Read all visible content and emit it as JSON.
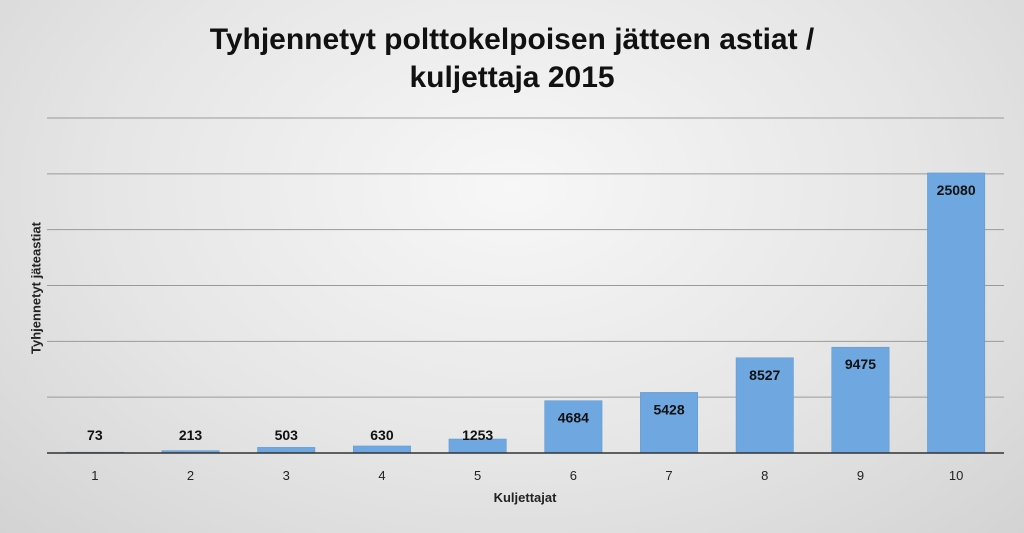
{
  "chart_data": {
    "type": "bar",
    "title_line1": "Tyhjennetyt polttokelpoisen jätteen astiat /",
    "title_line2": "kuljettaja  2015",
    "xlabel": "Kuljettajat",
    "ylabel": "Tyhjennetyt jäteastiat",
    "categories": [
      "1",
      "2",
      "3",
      "4",
      "5",
      "6",
      "7",
      "8",
      "9",
      "10"
    ],
    "values": [
      73,
      213,
      503,
      630,
      1253,
      4684,
      5428,
      8527,
      9475,
      25080
    ],
    "ylim": [
      0,
      30000
    ],
    "gridlines": [
      5000,
      10000,
      15000,
      20000,
      25000,
      30000
    ],
    "grid": true,
    "legend": "none",
    "bar_color": "#6fa8e0"
  }
}
